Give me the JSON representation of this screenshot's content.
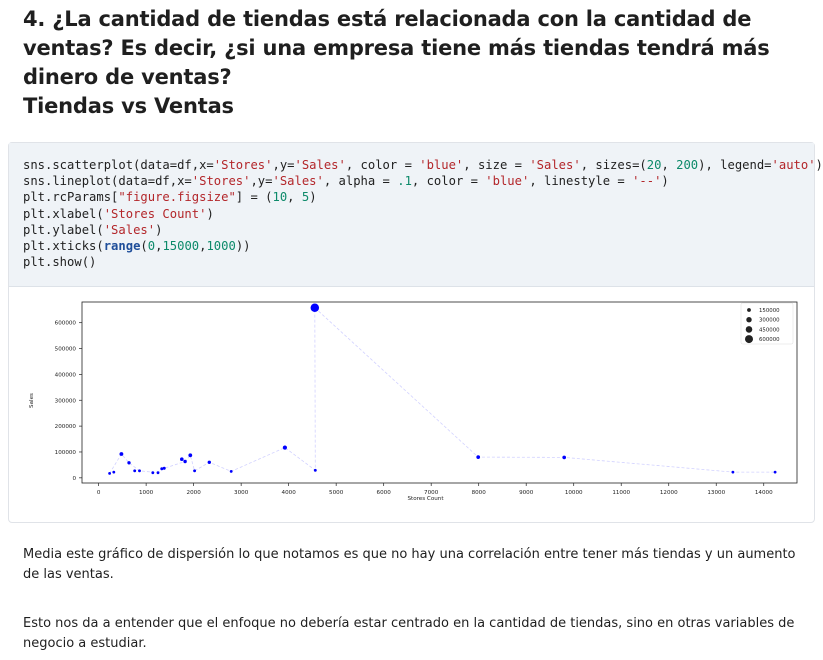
{
  "heading": {
    "question": "4. ¿La cantidad de tiendas está relacionada con la cantidad de ventas? Es decir, ¿si una empresa tiene más tiendas tendrá más dinero de ventas?",
    "section": "Tiendas vs Ventas"
  },
  "code_cell": {
    "lines": [
      [
        [
          "sns.scatterplot(data=df,x=",
          ""
        ],
        [
          "'Stores'",
          "s"
        ],
        [
          ",y=",
          ""
        ],
        [
          "'Sales'",
          "s"
        ],
        [
          ", color = ",
          ""
        ],
        [
          "'blue'",
          "s"
        ],
        [
          ", size = ",
          ""
        ],
        [
          "'Sales'",
          "s"
        ],
        [
          ", sizes=(",
          ""
        ],
        [
          "20",
          "n"
        ],
        [
          ", ",
          ""
        ],
        [
          "200",
          "n"
        ],
        [
          "), legend=",
          ""
        ],
        [
          "'auto'",
          "s"
        ],
        [
          ")",
          ""
        ]
      ],
      [
        [
          "sns.lineplot(data=df,x=",
          ""
        ],
        [
          "'Stores'",
          "s"
        ],
        [
          ",y=",
          ""
        ],
        [
          "'Sales'",
          "s"
        ],
        [
          ", alpha = ",
          ""
        ],
        [
          ".1",
          "n"
        ],
        [
          ", color = ",
          ""
        ],
        [
          "'blue'",
          "s"
        ],
        [
          ", linestyle = ",
          ""
        ],
        [
          "'--'",
          "s"
        ],
        [
          ")",
          ""
        ]
      ],
      [
        [
          "plt.rcParams[",
          ""
        ],
        [
          "\"figure.figsize\"",
          "s"
        ],
        [
          "] = (",
          ""
        ],
        [
          "10",
          "n"
        ],
        [
          ", ",
          ""
        ],
        [
          "5",
          "n"
        ],
        [
          ")",
          ""
        ]
      ],
      [
        [
          "plt.xlabel(",
          ""
        ],
        [
          "'Stores Count'",
          "s"
        ],
        [
          ")",
          ""
        ]
      ],
      [
        [
          "plt.ylabel(",
          ""
        ],
        [
          "'Sales'",
          "s"
        ],
        [
          ")",
          ""
        ]
      ],
      [
        [
          "plt.xticks(",
          ""
        ],
        [
          "range",
          "b"
        ],
        [
          "(",
          ""
        ],
        [
          "0",
          "n"
        ],
        [
          ",",
          ""
        ],
        [
          "15000",
          "n"
        ],
        [
          ",",
          ""
        ],
        [
          "1000",
          "n"
        ],
        [
          "))",
          ""
        ]
      ],
      [
        [
          "plt.show()",
          ""
        ]
      ]
    ]
  },
  "paragraphs": {
    "p1": "Media este gráfico de dispersión lo que notamos es que no hay una correlación entre tener más tiendas y un aumento de las ventas.",
    "p2": "Esto nos da a entender que el enfoque no debería estar centrado en la cantidad de tiendas, sino en otras variables de negocio a estudiar."
  },
  "chart_data": {
    "type": "scatter",
    "xlabel": "Stores Count",
    "ylabel": "Sales",
    "xlim": [
      -350,
      14700
    ],
    "ylim": [
      -20000,
      680000
    ],
    "xticks": [
      0,
      1000,
      2000,
      3000,
      4000,
      5000,
      6000,
      7000,
      8000,
      9000,
      10000,
      11000,
      12000,
      13000,
      14000
    ],
    "yticks": [
      0,
      100000,
      200000,
      300000,
      400000,
      500000,
      600000
    ],
    "color": "#0000ff",
    "line_style": "dashed",
    "line_alpha": 0.1,
    "points": [
      {
        "x": 230,
        "y": 17000
      },
      {
        "x": 320,
        "y": 22000
      },
      {
        "x": 480,
        "y": 92000
      },
      {
        "x": 640,
        "y": 58000
      },
      {
        "x": 760,
        "y": 27000
      },
      {
        "x": 860,
        "y": 27000
      },
      {
        "x": 1140,
        "y": 20000
      },
      {
        "x": 1250,
        "y": 20000
      },
      {
        "x": 1330,
        "y": 35000
      },
      {
        "x": 1380,
        "y": 37000
      },
      {
        "x": 1750,
        "y": 72000
      },
      {
        "x": 1820,
        "y": 63000
      },
      {
        "x": 1930,
        "y": 87000
      },
      {
        "x": 2020,
        "y": 27000
      },
      {
        "x": 2330,
        "y": 60000
      },
      {
        "x": 2790,
        "y": 25000
      },
      {
        "x": 3920,
        "y": 117000
      },
      {
        "x": 4550,
        "y": 658000
      },
      {
        "x": 4560,
        "y": 29000
      },
      {
        "x": 7990,
        "y": 80000
      },
      {
        "x": 9800,
        "y": 79000
      },
      {
        "x": 13350,
        "y": 22000
      },
      {
        "x": 14240,
        "y": 22000
      }
    ],
    "line_points": [
      {
        "x": 230,
        "y": 17000
      },
      {
        "x": 480,
        "y": 92000
      },
      {
        "x": 640,
        "y": 58000
      },
      {
        "x": 860,
        "y": 27000
      },
      {
        "x": 1250,
        "y": 20000
      },
      {
        "x": 1380,
        "y": 37000
      },
      {
        "x": 1820,
        "y": 63000
      },
      {
        "x": 1930,
        "y": 87000
      },
      {
        "x": 2020,
        "y": 27000
      },
      {
        "x": 2330,
        "y": 60000
      },
      {
        "x": 2790,
        "y": 25000
      },
      {
        "x": 3920,
        "y": 117000
      },
      {
        "x": 4560,
        "y": 29000
      },
      {
        "x": 4550,
        "y": 658000
      },
      {
        "x": 7990,
        "y": 80000
      },
      {
        "x": 9800,
        "y": 79000
      },
      {
        "x": 13350,
        "y": 22000
      },
      {
        "x": 14240,
        "y": 22000
      }
    ],
    "legend": {
      "position": "top-right",
      "entries": [
        "150000",
        "300000",
        "450000",
        "600000"
      ]
    }
  }
}
